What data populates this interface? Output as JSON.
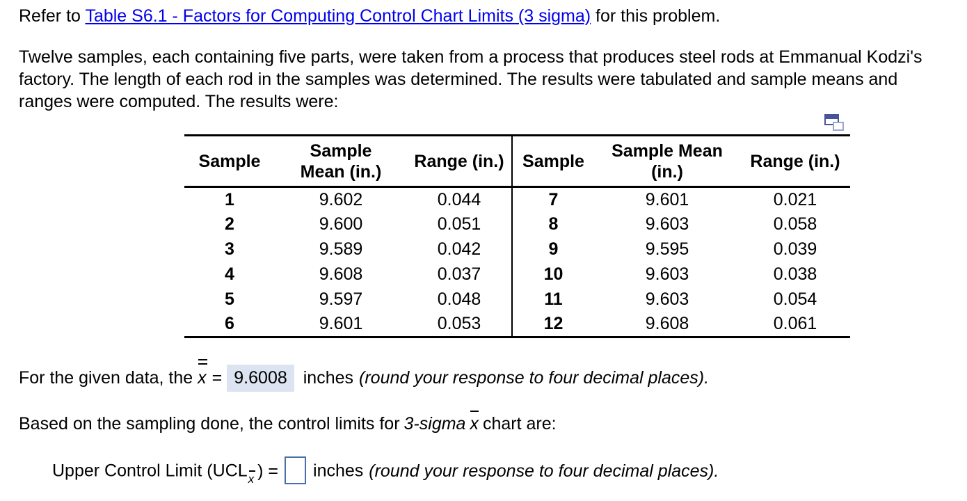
{
  "colors": {
    "link_blue": "#0000EE",
    "answer_highlight_bg": "#DCE3F1",
    "input_border_blue": "#4A6FA8",
    "icon_dark_blue": "#47549B",
    "icon_light_blue": "#9BA7CF",
    "table_border": "#000000"
  },
  "intro": {
    "prefix": "Refer to ",
    "link_text": "Table S6.1 - Factors for Computing Control Chart Limits (3 sigma)",
    "suffix": " for this problem."
  },
  "problem": {
    "lines": [
      "Twelve samples, each containing five parts, were taken from a process that produces steel rods at Emmanual Kodzi's",
      "factory. The length of each rod in the samples was determined. The results were tabulated and sample means and",
      "ranges were computed. The results were:"
    ]
  },
  "icons": {
    "copy_table": "copy-table-icon"
  },
  "table": {
    "headers": [
      "Sample",
      "Sample Mean (in.)",
      "Range (in.)",
      "Sample",
      "Sample Mean (in.)",
      "Range (in.)"
    ],
    "rows": [
      [
        "1",
        "9.602",
        "0.044",
        "7",
        "9.601",
        "0.021"
      ],
      [
        "2",
        "9.600",
        "0.051",
        "8",
        "9.603",
        "0.058"
      ],
      [
        "3",
        "9.589",
        "0.042",
        "9",
        "9.595",
        "0.039"
      ],
      [
        "4",
        "9.608",
        "0.037",
        "10",
        "9.603",
        "0.038"
      ],
      [
        "5",
        "9.597",
        "0.048",
        "11",
        "9.603",
        "0.054"
      ],
      [
        "6",
        "9.601",
        "0.053",
        "12",
        "9.608",
        "0.061"
      ]
    ]
  },
  "xbar_line": {
    "prefix": "For the given data, the",
    "var": "x",
    "equals": "=",
    "answer": "9.6008",
    "unit": "inches",
    "note": "(round your response to four decimal places)."
  },
  "limits_line": {
    "prefix": "Based on the sampling done, the control limits for",
    "italic_text": "3-sigma",
    "var": "x",
    "suffix": "chart are:"
  },
  "ucl_line": {
    "label_prefix": "Upper Control Limit (UCL",
    "sub_var": "x",
    "label_suffix": ") =",
    "input_value": "",
    "unit": "inches",
    "note": "(round your response to four decimal places)."
  }
}
